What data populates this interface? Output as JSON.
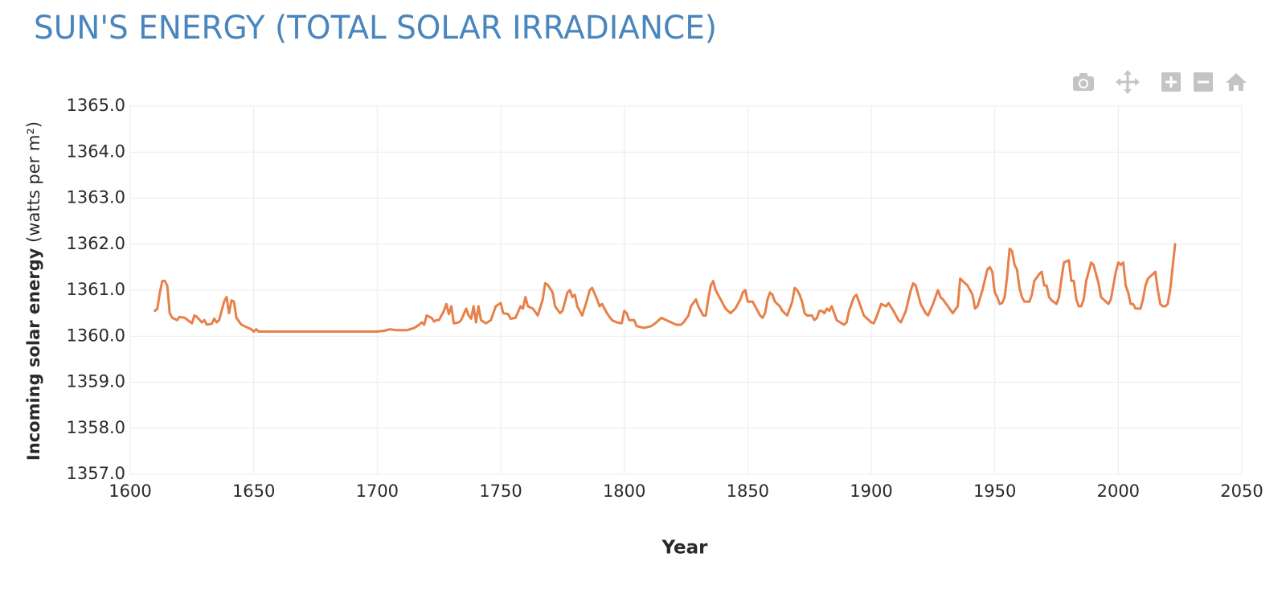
{
  "chart_data": {
    "type": "line",
    "title": "SUN'S ENERGY (TOTAL SOLAR IRRADIANCE)",
    "xlabel": "Year",
    "ylabel": "Incoming solar energy",
    "ylabel_unit": "(watts per m²)",
    "color": "#e8804a",
    "grid": true,
    "xlim": [
      1600,
      2050
    ],
    "xticks": [
      1600,
      1650,
      1700,
      1750,
      1800,
      1850,
      1900,
      1950,
      2000,
      2050
    ],
    "ylim": [
      1357,
      1365
    ],
    "yticks": [
      {
        "value": 1357,
        "label": "1357.0"
      },
      {
        "value": 1358,
        "label": "1358.0"
      },
      {
        "value": 1359,
        "label": "1359.0"
      },
      {
        "value": 1360,
        "label": "1360.0"
      },
      {
        "value": 1361,
        "label": "1361.0"
      },
      {
        "value": 1362,
        "label": "1362.0"
      },
      {
        "value": 1363,
        "label": "1363.0"
      },
      {
        "value": 1364,
        "label": "1364.0"
      },
      {
        "value": 1365,
        "label": "1365.0"
      }
    ],
    "x": [
      1610,
      1611,
      1612,
      1613,
      1614,
      1615,
      1616,
      1617,
      1619,
      1620,
      1622,
      1624,
      1625,
      1626,
      1627,
      1629,
      1630,
      1631,
      1633,
      1634,
      1635,
      1636,
      1637,
      1638,
      1639,
      1640,
      1641,
      1642,
      1643,
      1645,
      1647,
      1649,
      1650,
      1651,
      1652,
      1660,
      1670,
      1675,
      1680,
      1690,
      1700,
      1703,
      1705,
      1708,
      1712,
      1715,
      1717,
      1718,
      1719,
      1720,
      1722,
      1723,
      1724,
      1725,
      1727,
      1728,
      1729,
      1730,
      1731,
      1733,
      1734,
      1736,
      1737,
      1738,
      1739,
      1740,
      1741,
      1742,
      1744,
      1746,
      1748,
      1750,
      1751,
      1753,
      1754,
      1756,
      1758,
      1759,
      1760,
      1761,
      1763,
      1765,
      1767,
      1768,
      1769,
      1771,
      1772,
      1774,
      1775,
      1777,
      1778,
      1779,
      1780,
      1781,
      1783,
      1785,
      1786,
      1787,
      1789,
      1790,
      1791,
      1793,
      1795,
      1797,
      1799,
      1800,
      1801,
      1802,
      1804,
      1805,
      1808,
      1811,
      1813,
      1815,
      1817,
      1819,
      1821,
      1823,
      1824,
      1826,
      1827,
      1829,
      1830,
      1831,
      1832,
      1833,
      1834,
      1835,
      1836,
      1837,
      1838,
      1840,
      1841,
      1842,
      1843,
      1845,
      1847,
      1848,
      1849,
      1850,
      1852,
      1853,
      1854,
      1855,
      1856,
      1857,
      1858,
      1859,
      1860,
      1861,
      1862,
      1863,
      1864,
      1865,
      1866,
      1868,
      1869,
      1870,
      1871,
      1872,
      1873,
      1874,
      1876,
      1877,
      1878,
      1879,
      1880,
      1881,
      1882,
      1883,
      1884,
      1885,
      1886,
      1888,
      1889,
      1890,
      1891,
      1892,
      1893,
      1894,
      1895,
      1896,
      1897,
      1898,
      1899,
      1900,
      1901,
      1902,
      1903,
      1904,
      1906,
      1907,
      1909,
      1911,
      1912,
      1914,
      1916,
      1917,
      1918,
      1920,
      1922,
      1923,
      1925,
      1927,
      1928,
      1929,
      1931,
      1933,
      1935,
      1936,
      1937,
      1939,
      1941,
      1942,
      1943,
      1945,
      1947,
      1948,
      1949,
      1950,
      1951,
      1952,
      1953,
      1954,
      1955,
      1956,
      1957,
      1958,
      1959,
      1960,
      1961,
      1962,
      1964,
      1965,
      1966,
      1968,
      1969,
      1970,
      1971,
      1972,
      1973,
      1975,
      1976,
      1977,
      1978,
      1980,
      1981,
      1982,
      1983,
      1984,
      1985,
      1986,
      1987,
      1989,
      1990,
      1991,
      1992,
      1993,
      1995,
      1996,
      1997,
      1998,
      1999,
      2000,
      2001,
      2002,
      2003,
      2004,
      2005,
      2006,
      2007,
      2009,
      2010,
      2011,
      2012,
      2014,
      2015,
      2016,
      2017,
      2018,
      2019,
      2020,
      2021,
      2022,
      2023
    ],
    "values": [
      1360.55,
      1360.6,
      1360.95,
      1361.2,
      1361.2,
      1361.1,
      1360.5,
      1360.4,
      1360.35,
      1360.42,
      1360.4,
      1360.32,
      1360.28,
      1360.45,
      1360.42,
      1360.3,
      1360.35,
      1360.25,
      1360.27,
      1360.38,
      1360.3,
      1360.35,
      1360.55,
      1360.75,
      1360.85,
      1360.5,
      1360.78,
      1360.75,
      1360.4,
      1360.25,
      1360.2,
      1360.15,
      1360.1,
      1360.15,
      1360.1,
      1360.1,
      1360.1,
      1360.1,
      1360.1,
      1360.1,
      1360.1,
      1360.12,
      1360.15,
      1360.13,
      1360.13,
      1360.18,
      1360.25,
      1360.3,
      1360.25,
      1360.45,
      1360.4,
      1360.32,
      1360.35,
      1360.35,
      1360.55,
      1360.7,
      1360.48,
      1360.65,
      1360.28,
      1360.3,
      1360.35,
      1360.6,
      1360.45,
      1360.38,
      1360.65,
      1360.3,
      1360.65,
      1360.35,
      1360.28,
      1360.35,
      1360.65,
      1360.72,
      1360.5,
      1360.48,
      1360.38,
      1360.4,
      1360.65,
      1360.6,
      1360.85,
      1360.65,
      1360.6,
      1360.45,
      1360.8,
      1361.15,
      1361.12,
      1360.95,
      1360.65,
      1360.5,
      1360.55,
      1360.95,
      1361.0,
      1360.85,
      1360.9,
      1360.65,
      1360.45,
      1360.8,
      1361.0,
      1361.05,
      1360.8,
      1360.65,
      1360.7,
      1360.5,
      1360.35,
      1360.3,
      1360.28,
      1360.55,
      1360.5,
      1360.35,
      1360.35,
      1360.22,
      1360.18,
      1360.22,
      1360.3,
      1360.4,
      1360.35,
      1360.3,
      1360.25,
      1360.25,
      1360.3,
      1360.45,
      1360.65,
      1360.8,
      1360.65,
      1360.55,
      1360.45,
      1360.45,
      1360.8,
      1361.1,
      1361.2,
      1361.0,
      1360.9,
      1360.7,
      1360.6,
      1360.55,
      1360.5,
      1360.6,
      1360.8,
      1360.95,
      1361.0,
      1360.75,
      1360.75,
      1360.65,
      1360.55,
      1360.45,
      1360.4,
      1360.5,
      1360.8,
      1360.95,
      1360.9,
      1360.75,
      1360.7,
      1360.65,
      1360.55,
      1360.5,
      1360.45,
      1360.75,
      1361.05,
      1361.0,
      1360.9,
      1360.75,
      1360.5,
      1360.45,
      1360.45,
      1360.35,
      1360.4,
      1360.55,
      1360.55,
      1360.5,
      1360.6,
      1360.55,
      1360.65,
      1360.5,
      1360.35,
      1360.28,
      1360.25,
      1360.3,
      1360.55,
      1360.7,
      1360.85,
      1360.9,
      1360.75,
      1360.6,
      1360.45,
      1360.4,
      1360.35,
      1360.3,
      1360.28,
      1360.4,
      1360.55,
      1360.7,
      1360.65,
      1360.72,
      1360.55,
      1360.35,
      1360.3,
      1360.55,
      1361.0,
      1361.15,
      1361.1,
      1360.7,
      1360.5,
      1360.45,
      1360.7,
      1361.0,
      1360.85,
      1360.8,
      1360.65,
      1360.5,
      1360.65,
      1361.25,
      1361.2,
      1361.1,
      1360.9,
      1360.6,
      1360.65,
      1361.0,
      1361.45,
      1361.5,
      1361.4,
      1360.95,
      1360.85,
      1360.7,
      1360.72,
      1360.85,
      1361.3,
      1361.9,
      1361.85,
      1361.55,
      1361.45,
      1361.05,
      1360.85,
      1360.75,
      1360.75,
      1360.9,
      1361.2,
      1361.35,
      1361.4,
      1361.1,
      1361.1,
      1360.85,
      1360.78,
      1360.7,
      1360.85,
      1361.25,
      1361.6,
      1361.65,
      1361.2,
      1361.2,
      1360.8,
      1360.65,
      1360.65,
      1360.8,
      1361.2,
      1361.6,
      1361.55,
      1361.35,
      1361.15,
      1360.85,
      1360.75,
      1360.7,
      1360.8,
      1361.1,
      1361.4,
      1361.6,
      1361.55,
      1361.6,
      1361.1,
      1360.95,
      1360.7,
      1360.7,
      1360.6,
      1360.6,
      1360.8,
      1361.1,
      1361.25,
      1361.35,
      1361.4,
      1361.0,
      1360.7,
      1360.65,
      1360.65,
      1360.7,
      1361.0,
      1361.5,
      1362.0
    ]
  }
}
